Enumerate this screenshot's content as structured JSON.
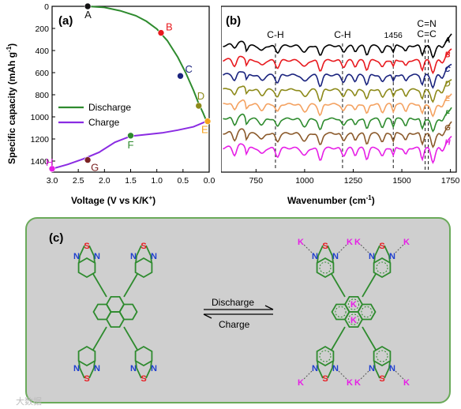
{
  "chart_data": [
    {
      "type": "line",
      "panel_label": "(a)",
      "xlabel": "Voltage (V vs K/K",
      "xlabel_sup": "+",
      "xlabel_end": ")",
      "ylabel": "Specific capacity (mAh g",
      "ylabel_sup": "-1",
      "ylabel_end": ")",
      "xlim": [
        3.0,
        0.0
      ],
      "ylim": [
        0,
        1500
      ],
      "y_inverted": true,
      "x_ticks": [
        "3.0",
        "2.5",
        "2.0",
        "1.5",
        "1.0",
        "0.5",
        "0.0"
      ],
      "y_ticks": [
        "0",
        "200",
        "400",
        "600",
        "800",
        "1000",
        "1200",
        "1400"
      ],
      "legend_position": "middle-left",
      "series": [
        {
          "name": "Discharge",
          "color": "#2e8b2e",
          "x": [
            2.32,
            2.0,
            1.7,
            1.4,
            1.2,
            1.0,
            0.8,
            0.6,
            0.45,
            0.3,
            0.2,
            0.12,
            0.05
          ],
          "y": [
            0,
            10,
            40,
            85,
            135,
            205,
            310,
            460,
            600,
            760,
            880,
            960,
            1040
          ]
        },
        {
          "name": "Charge",
          "color": "#8a2be2",
          "x": [
            0.05,
            0.3,
            0.6,
            0.9,
            1.2,
            1.5,
            1.8,
            2.1,
            2.4,
            2.7,
            3.0
          ],
          "y": [
            1040,
            1090,
            1120,
            1145,
            1160,
            1175,
            1230,
            1320,
            1380,
            1430,
            1470
          ]
        }
      ],
      "points": [
        {
          "label": "A",
          "x": 2.32,
          "y": 0,
          "color": "#111111"
        },
        {
          "label": "B",
          "x": 0.92,
          "y": 240,
          "color": "#e8191e"
        },
        {
          "label": "C",
          "x": 0.55,
          "y": 630,
          "color": "#1a237e"
        },
        {
          "label": "D",
          "x": 0.2,
          "y": 900,
          "color": "#8d8a1a"
        },
        {
          "label": "E",
          "x": 0.03,
          "y": 1040,
          "color": "#f4a21c"
        },
        {
          "label": "F",
          "x": 1.5,
          "y": 1170,
          "color": "#2e8b2e"
        },
        {
          "label": "G",
          "x": 2.32,
          "y": 1390,
          "color": "#7b2323"
        },
        {
          "label": "H",
          "x": 3.0,
          "y": 1470,
          "color": "#e61ee6"
        }
      ]
    },
    {
      "type": "line",
      "panel_label": "(b)",
      "xlabel": "Wavenumber (cm",
      "xlabel_sup": "-1",
      "xlabel_end": ")",
      "xlim": [
        570,
        1780
      ],
      "x_ticks": [
        750,
        1000,
        1250,
        1500,
        1750
      ],
      "y_axis_labels_shown": false,
      "annotations": [
        {
          "text": "C-H",
          "x": 850
        },
        {
          "text": "C-H",
          "x": 1195
        },
        {
          "text": "1456",
          "x": 1456
        },
        {
          "text": "C=N",
          "x": 1620,
          "line2": "C=C"
        }
      ],
      "series": [
        {
          "name": "A",
          "color": "#000000"
        },
        {
          "name": "B",
          "color": "#e8191e"
        },
        {
          "name": "C",
          "color": "#1a237e"
        },
        {
          "name": "D",
          "color": "#8d8a1a"
        },
        {
          "name": "E",
          "color": "#f4a261"
        },
        {
          "name": "F",
          "color": "#2e8b2e"
        },
        {
          "name": "G",
          "color": "#8b5a2b"
        },
        {
          "name": "H",
          "color": "#e61ee6"
        }
      ]
    }
  ],
  "scheme": {
    "panel_label": "(c)",
    "arrow_top_label": "Discharge",
    "arrow_bottom_label": "Charge",
    "atoms": {
      "n": "N",
      "s": "S",
      "k": "K"
    },
    "bond_color": "#2e8b2e"
  },
  "watermark": "大数据"
}
